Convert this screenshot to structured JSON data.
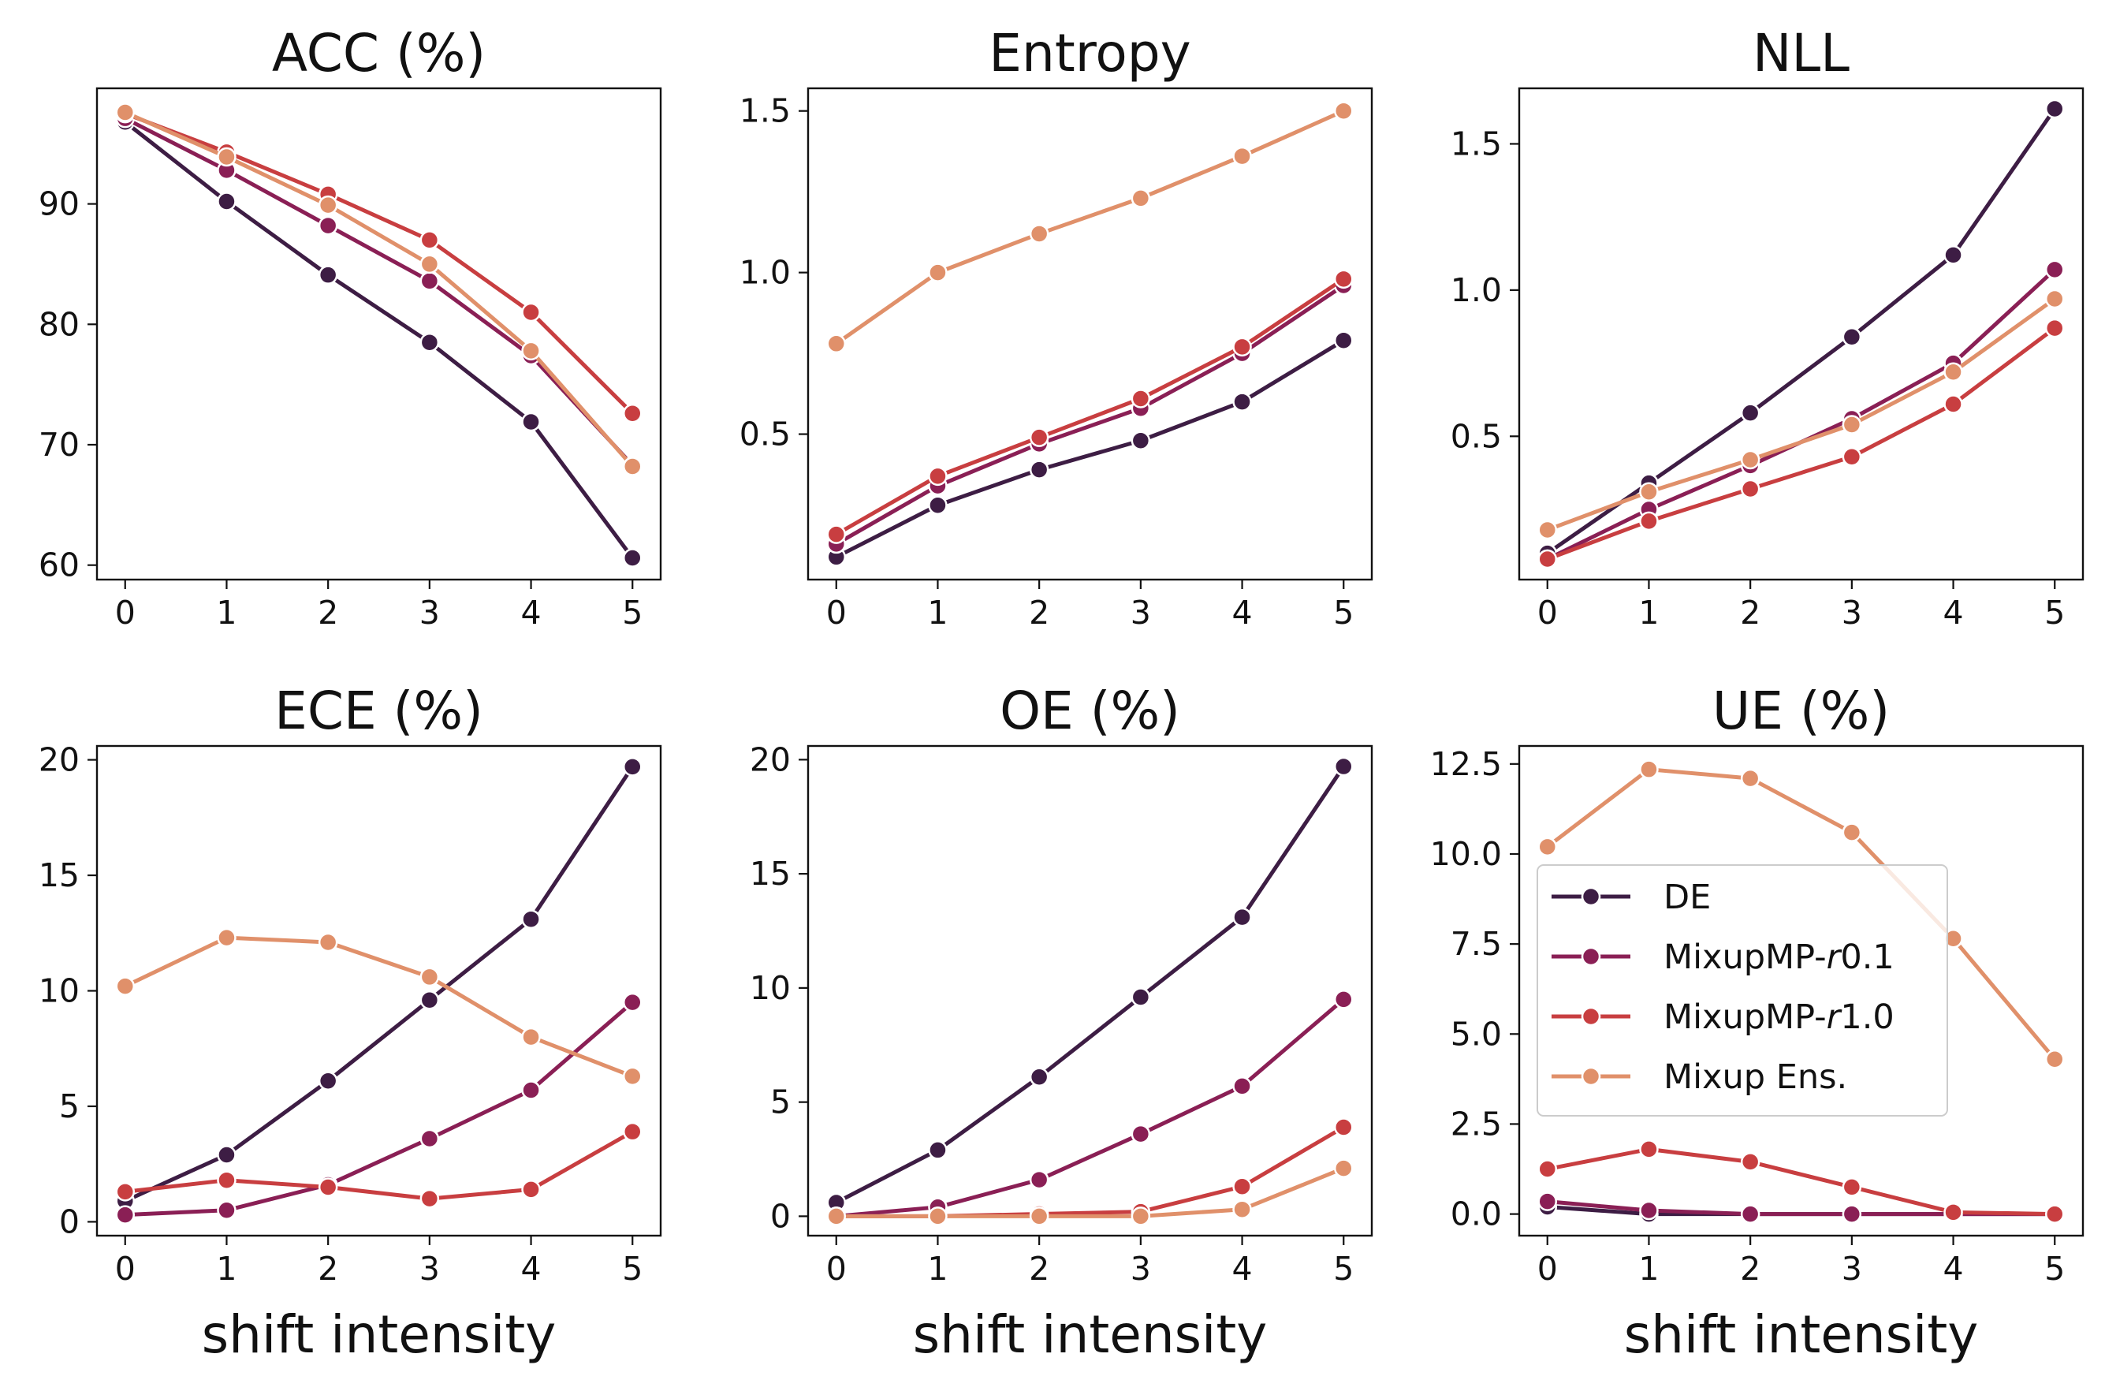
{
  "figure": {
    "x_tick_labels": [
      "0",
      "1",
      "2",
      "3",
      "4",
      "5"
    ],
    "colors": {
      "DE": "#3d1d44",
      "MixupMP-r0.1": "#8a1f55",
      "MixupMP-r1.0": "#c83e40",
      "Mixup Ens.": "#e0906a"
    },
    "legend": {
      "placement": "center-right of UE panel",
      "entries": [
        {
          "prefix": "DE",
          "italic": "",
          "suffix": ""
        },
        {
          "prefix": "MixupMP-",
          "italic": "r",
          "suffix": "0.1"
        },
        {
          "prefix": "MixupMP-",
          "italic": "r",
          "suffix": "1.0"
        },
        {
          "prefix": "Mixup Ens.",
          "italic": "",
          "suffix": ""
        }
      ]
    }
  },
  "chart_data": [
    {
      "type": "line",
      "title": "ACC (%)",
      "xlabel": "",
      "x": [
        0,
        1,
        2,
        3,
        4,
        5
      ],
      "ylim": [
        58.8,
        99.6
      ],
      "yticks": [
        60,
        70,
        80,
        90
      ],
      "ytick_labels": [
        "60",
        "70",
        "80",
        "90"
      ],
      "series": [
        {
          "name": "DE",
          "values": [
            96.8,
            90.2,
            84.1,
            78.5,
            71.9,
            60.6
          ]
        },
        {
          "name": "MixupMP-r0.1",
          "values": [
            97.1,
            92.8,
            88.2,
            83.6,
            77.4,
            68.3
          ]
        },
        {
          "name": "MixupMP-r1.0",
          "values": [
            97.5,
            94.3,
            90.8,
            87.0,
            81.0,
            72.6
          ]
        },
        {
          "name": "Mixup Ens.",
          "values": [
            97.6,
            93.9,
            89.9,
            85.0,
            77.8,
            68.2
          ]
        }
      ]
    },
    {
      "type": "line",
      "title": "Entropy",
      "xlabel": "",
      "x": [
        0,
        1,
        2,
        3,
        4,
        5
      ],
      "ylim": [
        0.05,
        1.57
      ],
      "yticks": [
        0.5,
        1.0,
        1.5
      ],
      "ytick_labels": [
        "0.5",
        "1.0",
        "1.5"
      ],
      "series": [
        {
          "name": "DE",
          "values": [
            0.12,
            0.28,
            0.39,
            0.48,
            0.6,
            0.79
          ]
        },
        {
          "name": "MixupMP-r0.1",
          "values": [
            0.16,
            0.34,
            0.47,
            0.58,
            0.75,
            0.96
          ]
        },
        {
          "name": "MixupMP-r1.0",
          "values": [
            0.19,
            0.37,
            0.49,
            0.61,
            0.77,
            0.98
          ]
        },
        {
          "name": "Mixup Ens.",
          "values": [
            0.78,
            1.0,
            1.12,
            1.23,
            1.36,
            1.5
          ]
        }
      ]
    },
    {
      "type": "line",
      "title": "NLL",
      "xlabel": "",
      "x": [
        0,
        1,
        2,
        3,
        4,
        5
      ],
      "ylim": [
        0.01,
        1.69
      ],
      "yticks": [
        0.5,
        1.0,
        1.5
      ],
      "ytick_labels": [
        "0.5",
        "1.0",
        "1.5"
      ],
      "series": [
        {
          "name": "DE",
          "values": [
            0.1,
            0.34,
            0.58,
            0.84,
            1.12,
            1.62
          ]
        },
        {
          "name": "MixupMP-r0.1",
          "values": [
            0.08,
            0.25,
            0.4,
            0.56,
            0.75,
            1.07
          ]
        },
        {
          "name": "MixupMP-r1.0",
          "values": [
            0.08,
            0.21,
            0.32,
            0.43,
            0.61,
            0.87
          ]
        },
        {
          "name": "Mixup Ens.",
          "values": [
            0.18,
            0.31,
            0.42,
            0.54,
            0.72,
            0.97
          ]
        }
      ]
    },
    {
      "type": "line",
      "title": "ECE (%)",
      "xlabel": "shift intensity",
      "x": [
        0,
        1,
        2,
        3,
        4,
        5
      ],
      "ylim": [
        -0.6,
        20.6
      ],
      "yticks": [
        0,
        5,
        10,
        15,
        20
      ],
      "ytick_labels": [
        "0",
        "5",
        "10",
        "15",
        "20"
      ],
      "series": [
        {
          "name": "DE",
          "values": [
            0.9,
            2.9,
            6.1,
            9.6,
            13.1,
            19.7
          ]
        },
        {
          "name": "MixupMP-r0.1",
          "values": [
            0.3,
            0.5,
            1.6,
            3.6,
            5.7,
            9.5
          ]
        },
        {
          "name": "MixupMP-r1.0",
          "values": [
            1.3,
            1.8,
            1.5,
            1.0,
            1.4,
            3.9
          ]
        },
        {
          "name": "Mixup Ens.",
          "values": [
            10.2,
            12.3,
            12.1,
            10.6,
            8.0,
            6.3
          ]
        }
      ]
    },
    {
      "type": "line",
      "title": "OE (%)",
      "xlabel": "shift intensity",
      "x": [
        0,
        1,
        2,
        3,
        4,
        5
      ],
      "ylim": [
        -0.85,
        20.6
      ],
      "yticks": [
        0,
        5,
        10,
        15,
        20
      ],
      "ytick_labels": [
        "0",
        "5",
        "10",
        "15",
        "20"
      ],
      "series": [
        {
          "name": "DE",
          "values": [
            0.6,
            2.9,
            6.1,
            9.6,
            13.1,
            19.7
          ]
        },
        {
          "name": "MixupMP-r0.1",
          "values": [
            0.0,
            0.4,
            1.6,
            3.6,
            5.7,
            9.5
          ]
        },
        {
          "name": "MixupMP-r1.0",
          "values": [
            0.0,
            0.0,
            0.1,
            0.2,
            1.3,
            3.9
          ]
        },
        {
          "name": "Mixup Ens.",
          "values": [
            0.0,
            0.0,
            0.0,
            0.0,
            0.3,
            2.1
          ]
        }
      ]
    },
    {
      "type": "line",
      "title": "UE (%)",
      "xlabel": "shift intensity",
      "x": [
        0,
        1,
        2,
        3,
        4,
        5
      ],
      "ylim": [
        -0.6,
        13.0
      ],
      "yticks": [
        0.0,
        2.5,
        5.0,
        7.5,
        10.0,
        12.5
      ],
      "ytick_labels": [
        "0.0",
        "2.5",
        "5.0",
        "7.5",
        "10.0",
        "12.5"
      ],
      "legend": true,
      "series": [
        {
          "name": "DE",
          "values": [
            0.2,
            0.0,
            0.0,
            0.0,
            0.0,
            0.0
          ]
        },
        {
          "name": "MixupMP-r0.1",
          "values": [
            0.35,
            0.1,
            0.0,
            0.0,
            0.0,
            0.0
          ]
        },
        {
          "name": "MixupMP-r1.0",
          "values": [
            1.25,
            1.8,
            1.45,
            0.75,
            0.05,
            0.0
          ]
        },
        {
          "name": "Mixup Ens.",
          "values": [
            10.2,
            12.35,
            12.1,
            10.6,
            7.65,
            4.3
          ]
        }
      ]
    }
  ]
}
